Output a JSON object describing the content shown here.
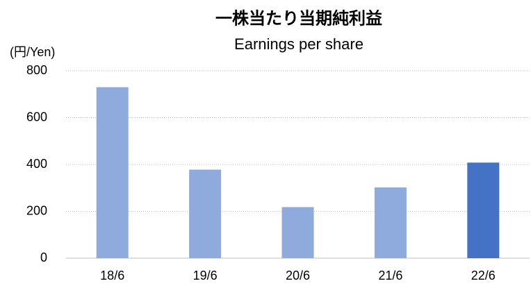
{
  "chart_data": {
    "type": "bar",
    "title": "一株当たり当期純利益",
    "subtitle": "Earnings per share",
    "y_label": "(円/Yen)",
    "categories": [
      "18/6",
      "19/6",
      "20/6",
      "21/6",
      "22/6"
    ],
    "values": [
      730,
      378,
      218,
      302,
      408
    ],
    "colors": [
      "#8faadc",
      "#8faadc",
      "#8faadc",
      "#8faadc",
      "#4472c4"
    ],
    "ylim": [
      0,
      800
    ],
    "yticks": [
      0,
      200,
      400,
      600,
      800
    ],
    "grid": true
  }
}
